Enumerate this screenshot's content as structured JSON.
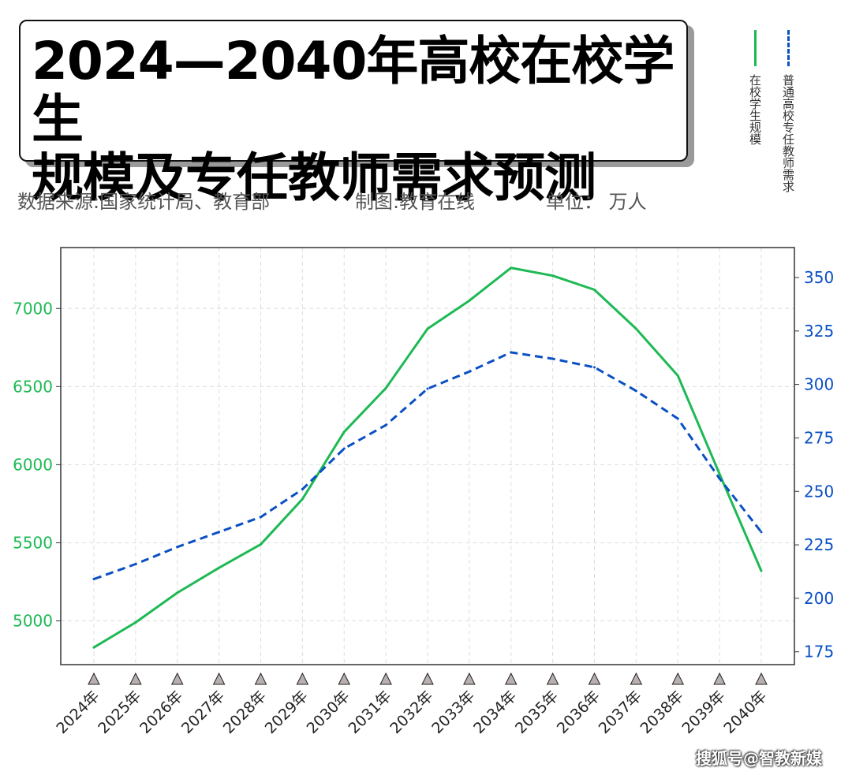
{
  "header": {
    "title_line1": "2024—2040年高校在校学生",
    "title_line2": "规模及专任教师需求预测",
    "source": "数据来源:国家统计局、教育部",
    "author": "制图:教育在线",
    "unit": "单位： 万人"
  },
  "legend": {
    "students": "在校学生规模",
    "teachers": "普通高校专任教师需求"
  },
  "watermark": "搜狐号@智教新媒",
  "colors": {
    "students": "#1db954",
    "teachers": "#0a4fc4",
    "axis": "#333333",
    "grid": "#dddddd"
  },
  "chart_data": {
    "type": "line",
    "categories": [
      "2024年",
      "2025年",
      "2026年",
      "2027年",
      "2028年",
      "2029年",
      "2030年",
      "2031年",
      "2032年",
      "2033年",
      "2034年",
      "2035年",
      "2036年",
      "2037年",
      "2038年",
      "2039年",
      "2040年"
    ],
    "series": [
      {
        "name": "在校学生规模",
        "axis": "left",
        "style": "solid",
        "values": [
          4830,
          4990,
          5180,
          5340,
          5490,
          5780,
          6210,
          6490,
          6870,
          7050,
          7260,
          7210,
          7120,
          6870,
          6570,
          5940,
          5320
        ]
      },
      {
        "name": "普通高校专任教师需求",
        "axis": "right",
        "style": "dashed",
        "values": [
          209,
          216,
          224,
          231,
          238,
          251,
          270,
          281,
          298,
          306,
          315,
          312,
          308,
          297,
          284,
          256,
          231
        ]
      }
    ],
    "y_left": {
      "ticks": [
        5000,
        5500,
        6000,
        6500,
        7000
      ],
      "lim": [
        4720,
        7390
      ]
    },
    "y_right": {
      "ticks": [
        175,
        200,
        225,
        250,
        275,
        300,
        325,
        350
      ],
      "lim": [
        169,
        364
      ]
    },
    "grid": true
  }
}
